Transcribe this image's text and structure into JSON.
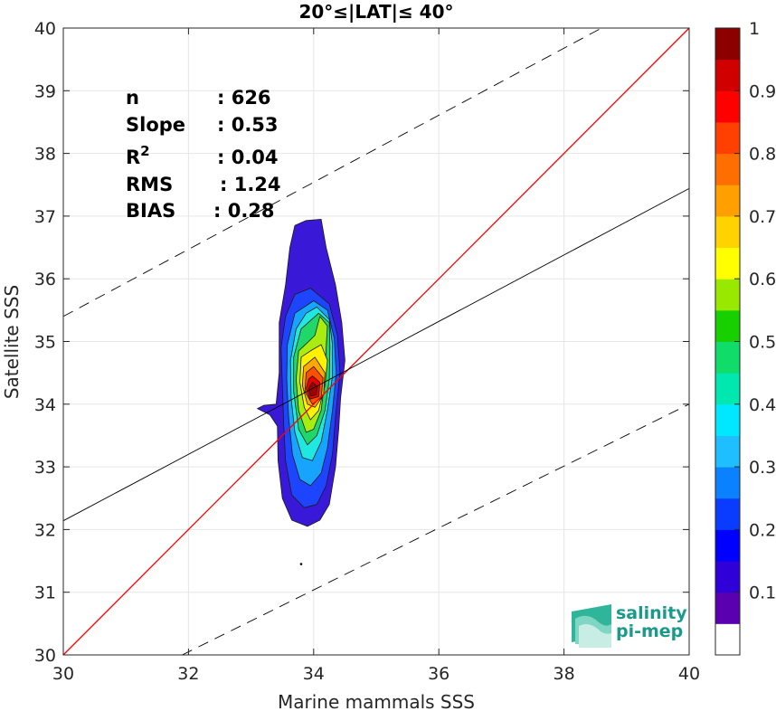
{
  "chart_data": {
    "type": "density-contour-scatter",
    "title": "20°≤|LAT|≤ 40°",
    "xlabel": "Marine mammals SSS",
    "ylabel": "Satellite SSS",
    "xlim": [
      30,
      40
    ],
    "ylim": [
      30,
      40
    ],
    "xticks": [
      30,
      32,
      34,
      36,
      38,
      40
    ],
    "yticks": [
      30,
      31,
      32,
      33,
      34,
      35,
      36,
      37,
      38,
      39,
      40
    ],
    "grid": true,
    "stats": [
      {
        "label": "n",
        "value": ": 626"
      },
      {
        "label": "Slope",
        "value": ": 0.53"
      },
      {
        "label": "R",
        "sup": "2",
        "value": ": 0.04"
      },
      {
        "label": "RMS",
        "value": ": 1.24"
      },
      {
        "label": "BIAS",
        "value": ": 0.28"
      }
    ],
    "lines": {
      "identity": {
        "slope": 1,
        "intercept": 0,
        "color": "#ff0000"
      },
      "fit": {
        "slope": 0.53,
        "intercept": 16.24,
        "color": "#000000"
      },
      "upper_dashed": {
        "x": [
          30,
          38.6
        ],
        "y": [
          35.4,
          40
        ]
      },
      "lower_dashed": {
        "x": [
          31.9,
          40
        ],
        "y": [
          30,
          34
        ]
      }
    },
    "density_peak": {
      "x": 34.0,
      "y": 34.2
    },
    "outlier_point": {
      "x": 33.8,
      "y": 31.45
    },
    "colorbar": {
      "range": [
        0,
        1
      ],
      "ticks": [
        0.1,
        0.2,
        0.3,
        0.4,
        0.5,
        0.6,
        0.7,
        0.8,
        0.9,
        1
      ],
      "colors": [
        "#ffffff",
        "#5a00b0",
        "#2f00d8",
        "#0000ff",
        "#0a3cff",
        "#0a82ff",
        "#1ebeff",
        "#00e8ff",
        "#00e7b0",
        "#10dc6a",
        "#18d000",
        "#98e800",
        "#ffff00",
        "#ffd200",
        "#ffa000",
        "#ff6e00",
        "#ff4000",
        "#ff0000",
        "#d00000",
        "#8c0000"
      ]
    },
    "contour_levels": [
      {
        "level": 0.05,
        "color": "#3a18d8",
        "pts": [
          [
            33.88,
            36.93
          ],
          [
            34.12,
            36.95
          ],
          [
            34.2,
            36.5
          ],
          [
            34.35,
            35.9
          ],
          [
            34.45,
            35.3
          ],
          [
            34.5,
            34.7
          ],
          [
            34.43,
            34.1
          ],
          [
            34.4,
            33.6
          ],
          [
            34.35,
            33.0
          ],
          [
            34.25,
            32.4
          ],
          [
            34.1,
            32.15
          ],
          [
            33.9,
            32.05
          ],
          [
            33.65,
            32.15
          ],
          [
            33.5,
            32.5
          ],
          [
            33.43,
            33.1
          ],
          [
            33.42,
            33.65
          ],
          [
            33.3,
            33.83
          ],
          [
            33.1,
            33.93
          ],
          [
            33.2,
            33.98
          ],
          [
            33.4,
            34.0
          ],
          [
            33.45,
            34.5
          ],
          [
            33.45,
            35.3
          ],
          [
            33.55,
            35.9
          ],
          [
            33.62,
            36.5
          ],
          [
            33.7,
            36.85
          ]
        ]
      },
      {
        "level": 0.15,
        "color": "#1d44ff",
        "pts": [
          [
            33.95,
            35.85
          ],
          [
            34.25,
            35.6
          ],
          [
            34.38,
            35.1
          ],
          [
            34.42,
            34.5
          ],
          [
            34.35,
            33.8
          ],
          [
            34.3,
            33.2
          ],
          [
            34.2,
            32.7
          ],
          [
            34.05,
            32.4
          ],
          [
            33.85,
            32.35
          ],
          [
            33.65,
            32.55
          ],
          [
            33.55,
            33.1
          ],
          [
            33.52,
            33.7
          ],
          [
            33.5,
            34.3
          ],
          [
            33.48,
            34.9
          ],
          [
            33.55,
            35.4
          ],
          [
            33.7,
            35.75
          ]
        ]
      },
      {
        "level": 0.25,
        "color": "#16a4ff",
        "pts": [
          [
            34.0,
            35.65
          ],
          [
            34.22,
            35.5
          ],
          [
            34.33,
            35.05
          ],
          [
            34.36,
            34.5
          ],
          [
            34.3,
            33.9
          ],
          [
            34.22,
            33.3
          ],
          [
            34.12,
            32.9
          ],
          [
            33.95,
            32.7
          ],
          [
            33.78,
            32.8
          ],
          [
            33.66,
            33.2
          ],
          [
            33.6,
            33.8
          ],
          [
            33.57,
            34.4
          ],
          [
            33.58,
            34.95
          ],
          [
            33.7,
            35.45
          ]
        ]
      },
      {
        "level": 0.35,
        "color": "#1ee8e0",
        "pts": [
          [
            34.05,
            35.55
          ],
          [
            34.25,
            35.35
          ],
          [
            34.3,
            34.95
          ],
          [
            34.3,
            34.45
          ],
          [
            34.22,
            33.9
          ],
          [
            34.12,
            33.4
          ],
          [
            33.98,
            33.1
          ],
          [
            33.82,
            33.15
          ],
          [
            33.7,
            33.55
          ],
          [
            33.64,
            34.1
          ],
          [
            33.63,
            34.7
          ],
          [
            33.72,
            35.2
          ],
          [
            33.88,
            35.45
          ]
        ]
      },
      {
        "level": 0.45,
        "color": "#20d86a",
        "pts": [
          [
            34.08,
            35.45
          ],
          [
            34.25,
            35.3
          ],
          [
            34.26,
            34.9
          ],
          [
            34.25,
            34.4
          ],
          [
            34.18,
            33.9
          ],
          [
            34.05,
            33.5
          ],
          [
            33.9,
            33.35
          ],
          [
            33.76,
            33.6
          ],
          [
            33.68,
            34.2
          ],
          [
            33.68,
            34.75
          ],
          [
            33.8,
            35.2
          ]
        ]
      },
      {
        "level": 0.55,
        "color": "#a8ec10",
        "pts": [
          [
            34.1,
            35.4
          ],
          [
            34.22,
            35.25
          ],
          [
            34.2,
            34.9
          ],
          [
            34.18,
            34.4
          ],
          [
            34.12,
            33.9
          ],
          [
            34.0,
            33.6
          ],
          [
            33.88,
            33.55
          ],
          [
            33.76,
            33.9
          ],
          [
            33.72,
            34.4
          ],
          [
            33.76,
            34.85
          ],
          [
            33.92,
            35.0
          ],
          [
            34.02,
            35.1
          ]
        ]
      },
      {
        "level": 0.65,
        "color": "#fff200",
        "pts": [
          [
            34.12,
            34.95
          ],
          [
            34.22,
            34.7
          ],
          [
            34.18,
            34.3
          ],
          [
            34.08,
            33.9
          ],
          [
            33.95,
            33.75
          ],
          [
            33.85,
            33.95
          ],
          [
            33.78,
            34.35
          ],
          [
            33.8,
            34.75
          ],
          [
            33.95,
            34.85
          ]
        ]
      },
      {
        "level": 0.75,
        "color": "#ffa800",
        "pts": [
          [
            34.02,
            34.75
          ],
          [
            34.18,
            34.5
          ],
          [
            34.16,
            34.15
          ],
          [
            34.02,
            33.95
          ],
          [
            33.9,
            34.0
          ],
          [
            33.82,
            34.3
          ],
          [
            33.84,
            34.6
          ]
        ]
      },
      {
        "level": 0.85,
        "color": "#ff5000",
        "pts": [
          [
            34.0,
            34.6
          ],
          [
            34.15,
            34.42
          ],
          [
            34.12,
            34.1
          ],
          [
            33.98,
            34.0
          ],
          [
            33.86,
            34.2
          ],
          [
            33.88,
            34.5
          ]
        ]
      },
      {
        "level": 0.92,
        "color": "#e80000",
        "pts": [
          [
            33.98,
            34.45
          ],
          [
            34.1,
            34.35
          ],
          [
            34.08,
            34.12
          ],
          [
            33.94,
            34.08
          ],
          [
            33.88,
            34.25
          ],
          [
            33.92,
            34.4
          ]
        ]
      },
      {
        "level": 0.97,
        "color": "#a00000",
        "pts": [
          [
            33.98,
            34.35
          ],
          [
            34.06,
            34.28
          ],
          [
            34.04,
            34.15
          ],
          [
            33.95,
            34.13
          ],
          [
            33.92,
            34.25
          ]
        ]
      }
    ]
  },
  "logo": {
    "line1": "salinity",
    "line2": "pi-mep"
  }
}
